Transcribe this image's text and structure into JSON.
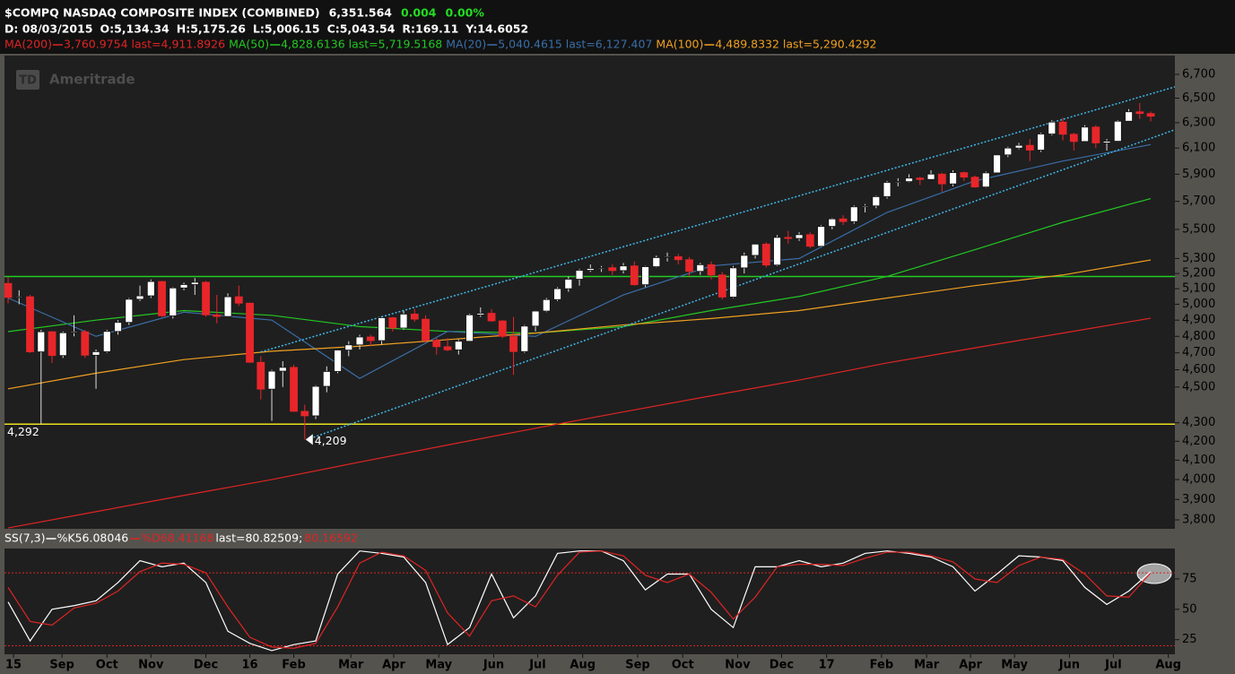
{
  "chart_data": [
    {
      "type": "candlestick",
      "title": "$COMPQ NASDAQ COMPOSITE INDEX (COMBINED)",
      "last_price": "6,351.564",
      "change": "0.004",
      "change_pct": "0.00%",
      "info": [
        "D: 08/03/2015",
        "O:5,134.34",
        "H:5,175.26",
        "L:5,006.15",
        "C:5,043.54",
        "R:169.11",
        "Y:14.6052"
      ],
      "watermark": {
        "logo": "TD",
        "text": "Ameritrade"
      },
      "up_color": "#ffffff",
      "down_color": "#e8262a",
      "open": [
        5134.34,
        5044,
        5048,
        4706,
        4828,
        4684,
        4822,
        4828,
        4686,
        4707,
        4830,
        4886,
        5032,
        5054,
        5147,
        4927,
        5105,
        5127,
        5142,
        4933,
        4923,
        5048,
        5007,
        4644,
        4488,
        4592,
        4614,
        4363,
        4338,
        4504,
        4590,
        4717,
        4748,
        4796,
        4774,
        4915,
        4851,
        4938,
        4906,
        4775,
        4737,
        4718,
        4770,
        4933,
        4943,
        4895,
        4800,
        4708,
        4863,
        4957,
        5030,
        5100,
        5162,
        5221,
        5233,
        5238,
        5219,
        5250,
        5126,
        5245,
        5306,
        5312,
        5292,
        5214,
        5258,
        5190,
        5046,
        5237,
        5321,
        5398,
        5256,
        5444,
        5437,
        5463,
        5383,
        5521,
        5574,
        5555,
        5660,
        5667,
        5734,
        5839,
        5845,
        5871,
        5861,
        5901,
        5828,
        5912,
        5878,
        5805,
        5910,
        6047,
        6100,
        6121,
        6084,
        6210,
        6305,
        6208,
        6151,
        6265,
        6140,
        6153,
        6312,
        6388,
        6374
      ],
      "high": [
        5175.26,
        5090,
        5060,
        4840,
        4830,
        4830,
        4930,
        4840,
        4720,
        4840,
        4900,
        5040,
        5120,
        5160,
        5150,
        5110,
        5140,
        5170,
        5150,
        5060,
        5070,
        5120,
        5010,
        4680,
        4600,
        4650,
        4630,
        4400,
        4510,
        4620,
        4720,
        4770,
        4810,
        4810,
        4920,
        4920,
        4960,
        4970,
        4930,
        4790,
        4790,
        4780,
        4940,
        4980,
        4970,
        4900,
        4920,
        4870,
        4960,
        5040,
        5110,
        5180,
        5230,
        5260,
        5250,
        5260,
        5270,
        5280,
        5250,
        5320,
        5340,
        5330,
        5310,
        5270,
        5280,
        5210,
        5250,
        5340,
        5400,
        5410,
        5460,
        5490,
        5480,
        5480,
        5530,
        5580,
        5600,
        5670,
        5680,
        5740,
        5850,
        5870,
        5900,
        5880,
        5930,
        5910,
        5930,
        5920,
        5890,
        5920,
        6050,
        6110,
        6140,
        6170,
        6220,
        6320,
        6340,
        6220,
        6280,
        6280,
        6170,
        6320,
        6410,
        6460,
        6390
      ],
      "low": [
        5006.15,
        5000,
        4700,
        4292,
        4640,
        4670,
        4800,
        4670,
        4490,
        4700,
        4810,
        4870,
        5020,
        5040,
        4920,
        4910,
        5090,
        5060,
        4920,
        4880,
        4920,
        4990,
        4640,
        4430,
        4310,
        4500,
        4360,
        4209,
        4320,
        4470,
        4580,
        4680,
        4720,
        4740,
        4750,
        4830,
        4840,
        4890,
        4760,
        4690,
        4710,
        4690,
        4770,
        4920,
        4890,
        4790,
        4570,
        4700,
        4830,
        4950,
        5020,
        5080,
        5120,
        5210,
        5210,
        5190,
        5200,
        5120,
        5110,
        5240,
        5280,
        5260,
        5180,
        5190,
        5160,
        5030,
        5040,
        5200,
        5300,
        5240,
        5250,
        5400,
        5420,
        5370,
        5380,
        5500,
        5530,
        5540,
        5620,
        5650,
        5720,
        5810,
        5840,
        5820,
        5860,
        5770,
        5810,
        5850,
        5800,
        5800,
        5910,
        6030,
        6090,
        6000,
        6070,
        6200,
        6160,
        6080,
        6150,
        6100,
        6080,
        6150,
        6310,
        6330,
        6310
      ],
      "close": [
        5043.54,
        5048,
        4706,
        4828,
        4684,
        4822,
        4828,
        4686,
        4707,
        4830,
        4886,
        5032,
        5054,
        5147,
        4927,
        5105,
        5127,
        5142,
        4933,
        4923,
        5048,
        5007,
        4644,
        4488,
        4592,
        4614,
        4363,
        4338,
        4504,
        4590,
        4717,
        4748,
        4796,
        4774,
        4915,
        4851,
        4938,
        4906,
        4775,
        4737,
        4718,
        4770,
        4933,
        4943,
        4895,
        4800,
        4708,
        4863,
        4957,
        5030,
        5100,
        5162,
        5221,
        5233,
        5238,
        5219,
        5250,
        5126,
        5245,
        5306,
        5312,
        5292,
        5214,
        5258,
        5190,
        5046,
        5237,
        5321,
        5398,
        5256,
        5444,
        5437,
        5463,
        5383,
        5521,
        5574,
        5555,
        5660,
        5667,
        5734,
        5839,
        5845,
        5871,
        5861,
        5901,
        5828,
        5912,
        5878,
        5805,
        5910,
        6047,
        6100,
        6121,
        6084,
        6210,
        6305,
        6208,
        6151,
        6265,
        6140,
        6153,
        6312,
        6388,
        6374,
        6352
      ],
      "overlays": [
        {
          "name": "MA(200)",
          "label": "3,760.9754 last=4,911.8926",
          "color": "#e02424",
          "x": [
            0,
            8,
            16,
            24,
            32,
            40,
            48,
            56,
            64,
            72,
            80,
            88,
            96,
            104
          ],
          "values": [
            3761,
            3840,
            3920,
            4000,
            4090,
            4180,
            4270,
            4360,
            4450,
            4540,
            4640,
            4730,
            4820,
            4912
          ]
        },
        {
          "name": "MA(50)",
          "label": "4,828.6136 last=5,719.5168",
          "color": "#22c822",
          "x": [
            0,
            8,
            16,
            24,
            32,
            40,
            48,
            56,
            64,
            72,
            80,
            88,
            96,
            104
          ],
          "values": [
            4829,
            4900,
            4960,
            4930,
            4860,
            4830,
            4820,
            4860,
            4960,
            5050,
            5180,
            5360,
            5550,
            5720
          ]
        },
        {
          "name": "MA(20)",
          "label": "5,040.4615 last=6,127.407",
          "color": "#3a6ea8",
          "x": [
            0,
            8,
            16,
            24,
            32,
            40,
            48,
            56,
            64,
            72,
            80,
            88,
            96,
            104
          ],
          "values": [
            5040,
            4800,
            4950,
            4900,
            4550,
            4830,
            4800,
            5060,
            5250,
            5300,
            5620,
            5850,
            6000,
            6127
          ]
        },
        {
          "name": "MA(100)",
          "label": "4,489.8332 last=5,290.4292",
          "color": "#f0a020",
          "x": [
            0,
            8,
            16,
            24,
            32,
            40,
            48,
            56,
            64,
            72,
            80,
            88,
            96,
            104
          ],
          "values": [
            4490,
            4580,
            4660,
            4710,
            4740,
            4780,
            4820,
            4870,
            4910,
            4960,
            5040,
            5120,
            5190,
            5290
          ]
        }
      ],
      "channels": {
        "color": "#3fb8e8",
        "lines": [
          {
            "x": [
              23,
              106.2
            ],
            "values": [
              4706,
              6594
            ]
          },
          {
            "x": [
              27.8,
              106.2
            ],
            "values": [
              4221,
              6244
            ]
          }
        ]
      },
      "hlines": [
        {
          "value": 5180,
          "color": "#22cc22"
        },
        {
          "value": 4292,
          "color": "#e8e020",
          "label": "4,292"
        }
      ],
      "annotation": {
        "x": 27,
        "value": 4209,
        "label": "4,209"
      },
      "log_scale": true,
      "xlim": [
        -0.33,
        106.2
      ],
      "ylim": [
        3757,
        6862
      ],
      "yticks": [
        {
          "value": 6700,
          "label": "6,700"
        },
        {
          "value": 6500,
          "label": "6,500"
        },
        {
          "value": 6300,
          "label": "6,300"
        },
        {
          "value": 6100,
          "label": "6,100"
        },
        {
          "value": 5900,
          "label": "5,900"
        },
        {
          "value": 5700,
          "label": "5,700"
        },
        {
          "value": 5500,
          "label": "5,500"
        },
        {
          "value": 5300,
          "label": "5,300"
        },
        {
          "value": 5200,
          "label": "5,200"
        },
        {
          "value": 5100,
          "label": "5,100"
        },
        {
          "value": 5000,
          "label": "5,000"
        },
        {
          "value": 4900,
          "label": "4,900"
        },
        {
          "value": 4800,
          "label": "4,800"
        },
        {
          "value": 4700,
          "label": "4,700"
        },
        {
          "value": 4600,
          "label": "4,600"
        },
        {
          "value": 4500,
          "label": "4,500"
        },
        {
          "value": 4300,
          "label": "4,300"
        },
        {
          "value": 4200,
          "label": "4,200"
        },
        {
          "value": 4100,
          "label": "4,100"
        },
        {
          "value": 4000,
          "label": "4,000"
        },
        {
          "value": 3900,
          "label": "3,900"
        },
        {
          "value": 3800,
          "label": "3,800"
        }
      ],
      "xticks": [
        {
          "value": 0.49,
          "label": "15"
        },
        {
          "value": 4.9,
          "label": "Sep"
        },
        {
          "value": 9.0,
          "label": "Oct"
        },
        {
          "value": 13.0,
          "label": "Nov"
        },
        {
          "value": 18.0,
          "label": "Dec"
        },
        {
          "value": 22.0,
          "label": "16"
        },
        {
          "value": 26.0,
          "label": "Feb"
        },
        {
          "value": 31.2,
          "label": "Mar"
        },
        {
          "value": 35.1,
          "label": "Apr"
        },
        {
          "value": 39.2,
          "label": "May"
        },
        {
          "value": 44.2,
          "label": "Jun"
        },
        {
          "value": 48.2,
          "label": "Jul"
        },
        {
          "value": 52.3,
          "label": "Aug"
        },
        {
          "value": 57.3,
          "label": "Sep"
        },
        {
          "value": 61.4,
          "label": "Oct"
        },
        {
          "value": 66.4,
          "label": "Nov"
        },
        {
          "value": 70.4,
          "label": "Dec"
        },
        {
          "value": 74.5,
          "label": "17"
        },
        {
          "value": 79.5,
          "label": "Feb"
        },
        {
          "value": 83.6,
          "label": "Mar"
        },
        {
          "value": 87.6,
          "label": "Apr"
        },
        {
          "value": 91.6,
          "label": "May"
        },
        {
          "value": 96.6,
          "label": "Jun"
        },
        {
          "value": 100.6,
          "label": "Jul"
        },
        {
          "value": 105.6,
          "label": "Aug"
        }
      ]
    },
    {
      "type": "line",
      "title": "SS(7,3)",
      "x": [
        0,
        2,
        4,
        6,
        8,
        10,
        12,
        14,
        16,
        18,
        20,
        22,
        24,
        26,
        28,
        30,
        32,
        34,
        36,
        38,
        40,
        42,
        44,
        46,
        48,
        50,
        52,
        54,
        56,
        58,
        60,
        62,
        64,
        66,
        68,
        70,
        72,
        74,
        76,
        78,
        80,
        82,
        84,
        86,
        88,
        90,
        92,
        94,
        96,
        98,
        100,
        102,
        104
      ],
      "series": [
        {
          "name": "%K",
          "label": "56.08046",
          "color": "#ffffff",
          "values": [
            56,
            24,
            50,
            53,
            57,
            72,
            90,
            85,
            88,
            72,
            32,
            22,
            16,
            21,
            24,
            79,
            98,
            96,
            93,
            72,
            21,
            35,
            79,
            43,
            61,
            96,
            98,
            98,
            90,
            66,
            79,
            79,
            50,
            35,
            85,
            85,
            90,
            85,
            88,
            96,
            98,
            96,
            93,
            85,
            65,
            79,
            94,
            93,
            90,
            68,
            54,
            65,
            81
          ]
        },
        {
          "name": "%D",
          "label": "68.41168",
          "color": "#e02424",
          "values": [
            68,
            40,
            37,
            51,
            55,
            65,
            81,
            88,
            87,
            80,
            52,
            27,
            19,
            18,
            22,
            52,
            88,
            97,
            94,
            82,
            47,
            28,
            57,
            61,
            52,
            78,
            97,
            98,
            94,
            78,
            72,
            79,
            64,
            42,
            60,
            85,
            87,
            87,
            86,
            92,
            97,
            97,
            94,
            89,
            75,
            72,
            86,
            93,
            91,
            79,
            61,
            60,
            80
          ]
        }
      ],
      "last": "last=80.82509;",
      "last_d": "80.16592",
      "hlines": [
        {
          "value": 80,
          "color": "#e02424"
        },
        {
          "value": 20,
          "color": "#e02424"
        }
      ],
      "ylim": [
        13,
        100
      ],
      "yticks": [
        25,
        50,
        75
      ]
    }
  ]
}
